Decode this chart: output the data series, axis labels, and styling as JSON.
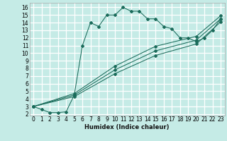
{
  "xlabel": "Humidex (Indice chaleur)",
  "bg_color": "#c5ebe6",
  "grid_color": "#ffffff",
  "line_color": "#1a6b5a",
  "xlim": [
    -0.5,
    23.5
  ],
  "ylim": [
    1.8,
    16.6
  ],
  "xticks": [
    0,
    1,
    2,
    3,
    4,
    5,
    6,
    7,
    8,
    9,
    10,
    11,
    12,
    13,
    14,
    15,
    16,
    17,
    18,
    19,
    20,
    21,
    22,
    23
  ],
  "yticks": [
    2,
    3,
    4,
    5,
    6,
    7,
    8,
    9,
    10,
    11,
    12,
    13,
    14,
    15,
    16
  ],
  "curve_x": [
    0,
    1,
    2,
    3,
    4,
    5,
    6,
    7,
    8,
    9,
    10,
    11,
    12,
    13,
    14,
    15,
    16,
    17,
    18,
    19,
    20,
    21,
    22,
    23
  ],
  "curve_y": [
    3.0,
    2.6,
    2.2,
    2.2,
    2.3,
    4.5,
    11.0,
    14.0,
    13.5,
    15.0,
    15.0,
    16.0,
    15.5,
    15.5,
    14.5,
    14.5,
    13.5,
    13.2,
    12.0,
    12.0,
    11.5,
    12.0,
    13.0,
    14.5
  ],
  "diag1_x": [
    0,
    5,
    10,
    15,
    20,
    23
  ],
  "diag1_y": [
    3.0,
    4.5,
    7.8,
    10.3,
    11.7,
    14.5
  ],
  "diag2_x": [
    0,
    5,
    10,
    15,
    20,
    23
  ],
  "diag2_y": [
    3.0,
    4.7,
    8.3,
    10.9,
    12.2,
    14.9
  ],
  "diag3_x": [
    0,
    5,
    10,
    15,
    20,
    23
  ],
  "diag3_y": [
    3.0,
    4.3,
    7.3,
    9.7,
    11.2,
    14.1
  ]
}
